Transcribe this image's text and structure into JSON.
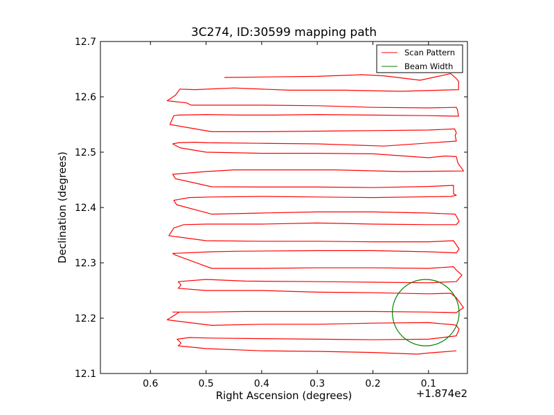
{
  "chart_data": {
    "type": "line",
    "title": "3C274, ID:30599 mapping path",
    "xlabel": "Right Ascension (degrees)",
    "ylabel": "Declination (degrees)",
    "x_offset_label": "+1.874e2",
    "x_inverted": true,
    "xlim": [
      0.69,
      0.03
    ],
    "ylim": [
      12.1,
      12.7
    ],
    "xticks": [
      0.6,
      0.5,
      0.4,
      0.3,
      0.2,
      0.1
    ],
    "xtick_labels": [
      "0.6",
      "0.5",
      "0.4",
      "0.3",
      "0.2",
      "0.1"
    ],
    "yticks": [
      12.1,
      12.2,
      12.3,
      12.4,
      12.5,
      12.6,
      12.7
    ],
    "ytick_labels": [
      "12.1",
      "12.2",
      "12.3",
      "12.4",
      "12.5",
      "12.6",
      "12.7"
    ],
    "grid": false,
    "legend_position": "top-right",
    "series": [
      {
        "name": "Scan Pattern",
        "color": "#ff0000",
        "x": [
          0.467,
          0.3,
          0.22,
          0.18,
          0.115,
          0.06,
          0.05,
          0.046,
          0.046,
          0.15,
          0.25,
          0.35,
          0.45,
          0.52,
          0.547,
          0.555,
          0.57,
          0.535,
          0.527,
          0.49,
          0.4,
          0.3,
          0.2,
          0.1,
          0.05,
          0.048,
          0.046,
          0.1,
          0.2,
          0.3,
          0.38,
          0.44,
          0.5,
          0.55,
          0.558,
          0.565,
          0.49,
          0.4,
          0.3,
          0.2,
          0.1,
          0.053,
          0.05,
          0.052,
          0.05,
          0.18,
          0.3,
          0.4,
          0.498,
          0.52,
          0.55,
          0.56,
          0.547,
          0.5,
          0.4,
          0.3,
          0.2,
          0.1,
          0.07,
          0.05,
          0.047,
          0.037,
          0.15,
          0.27,
          0.38,
          0.45,
          0.5,
          0.56,
          0.555,
          0.49,
          0.4,
          0.3,
          0.2,
          0.1,
          0.055,
          0.055,
          0.05,
          0.06,
          0.2,
          0.3,
          0.4,
          0.49,
          0.53,
          0.558,
          0.553,
          0.49,
          0.4,
          0.3,
          0.2,
          0.1,
          0.052,
          0.045,
          0.05,
          0.1,
          0.2,
          0.3,
          0.4,
          0.5,
          0.54,
          0.558,
          0.567,
          0.5,
          0.4,
          0.3,
          0.2,
          0.1,
          0.055,
          0.045,
          0.05,
          0.1,
          0.2,
          0.3,
          0.44,
          0.49,
          0.56,
          0.555,
          0.49,
          0.4,
          0.3,
          0.2,
          0.1,
          0.055,
          0.05,
          0.04,
          0.05,
          0.1,
          0.2,
          0.3,
          0.43,
          0.5,
          0.55,
          0.545,
          0.55,
          0.5,
          0.4,
          0.3,
          0.2,
          0.1,
          0.06,
          0.05,
          0.037,
          0.05,
          0.1,
          0.2,
          0.3,
          0.43,
          0.5,
          0.56,
          0.548,
          0.57,
          0.49,
          0.4,
          0.3,
          0.2,
          0.1,
          0.054,
          0.05,
          0.045,
          0.05,
          0.1,
          0.2,
          0.3,
          0.4,
          0.49,
          0.53,
          0.552,
          0.545,
          0.55,
          0.5,
          0.4,
          0.3,
          0.2,
          0.12,
          0.1,
          0.05
        ],
        "y": [
          12.635,
          12.637,
          12.64,
          12.638,
          12.63,
          12.642,
          12.633,
          12.628,
          12.613,
          12.61,
          12.612,
          12.612,
          12.616,
          12.613,
          12.614,
          12.603,
          12.593,
          12.589,
          12.585,
          12.585,
          12.585,
          12.584,
          12.581,
          12.58,
          12.581,
          12.577,
          12.565,
          12.566,
          12.567,
          12.568,
          12.567,
          12.567,
          12.568,
          12.567,
          12.566,
          12.55,
          12.537,
          12.537,
          12.538,
          12.539,
          12.54,
          12.542,
          12.535,
          12.53,
          12.52,
          12.511,
          12.515,
          12.516,
          12.517,
          12.518,
          12.517,
          12.515,
          12.508,
          12.5,
          12.498,
          12.498,
          12.497,
          12.49,
          12.493,
          12.492,
          12.48,
          12.466,
          12.465,
          12.468,
          12.468,
          12.468,
          12.465,
          12.46,
          12.452,
          12.4375,
          12.437,
          12.437,
          12.436,
          12.438,
          12.44,
          12.425,
          12.422,
          12.42,
          12.418,
          12.419,
          12.42,
          12.419,
          12.418,
          12.413,
          12.405,
          12.388,
          12.39,
          12.392,
          12.392,
          12.39,
          12.388,
          12.375,
          12.369,
          12.369,
          12.37,
          12.372,
          12.37,
          12.37,
          12.369,
          12.363,
          12.349,
          12.34,
          12.339,
          12.339,
          12.338,
          12.338,
          12.34,
          12.325,
          12.318,
          12.32,
          12.322,
          12.322,
          12.321,
          12.32,
          12.317,
          12.314,
          12.29,
          12.29,
          12.291,
          12.291,
          12.29,
          12.293,
          12.287,
          12.278,
          12.266,
          12.264,
          12.265,
          12.266,
          12.267,
          12.27,
          12.266,
          12.26,
          12.254,
          12.25,
          12.25,
          12.247,
          12.246,
          12.244,
          12.245,
          12.237,
          12.219,
          12.21,
          12.211,
          12.212,
          12.212,
          12.212,
          12.211,
          12.211,
          12.211,
          12.197,
          12.187,
          12.189,
          12.189,
          12.191,
          12.192,
          12.188,
          12.187,
          12.18,
          12.168,
          12.162,
          12.161,
          12.162,
          12.163,
          12.164,
          12.165,
          12.162,
          12.155,
          12.15,
          12.145,
          12.141,
          12.14,
          12.138,
          12.135,
          12.137,
          12.141
        ]
      },
      {
        "name": "Beam Width",
        "color": "#008000",
        "shape": "circle",
        "center": [
          0.105,
          12.21
        ],
        "radius": 0.06
      }
    ]
  }
}
